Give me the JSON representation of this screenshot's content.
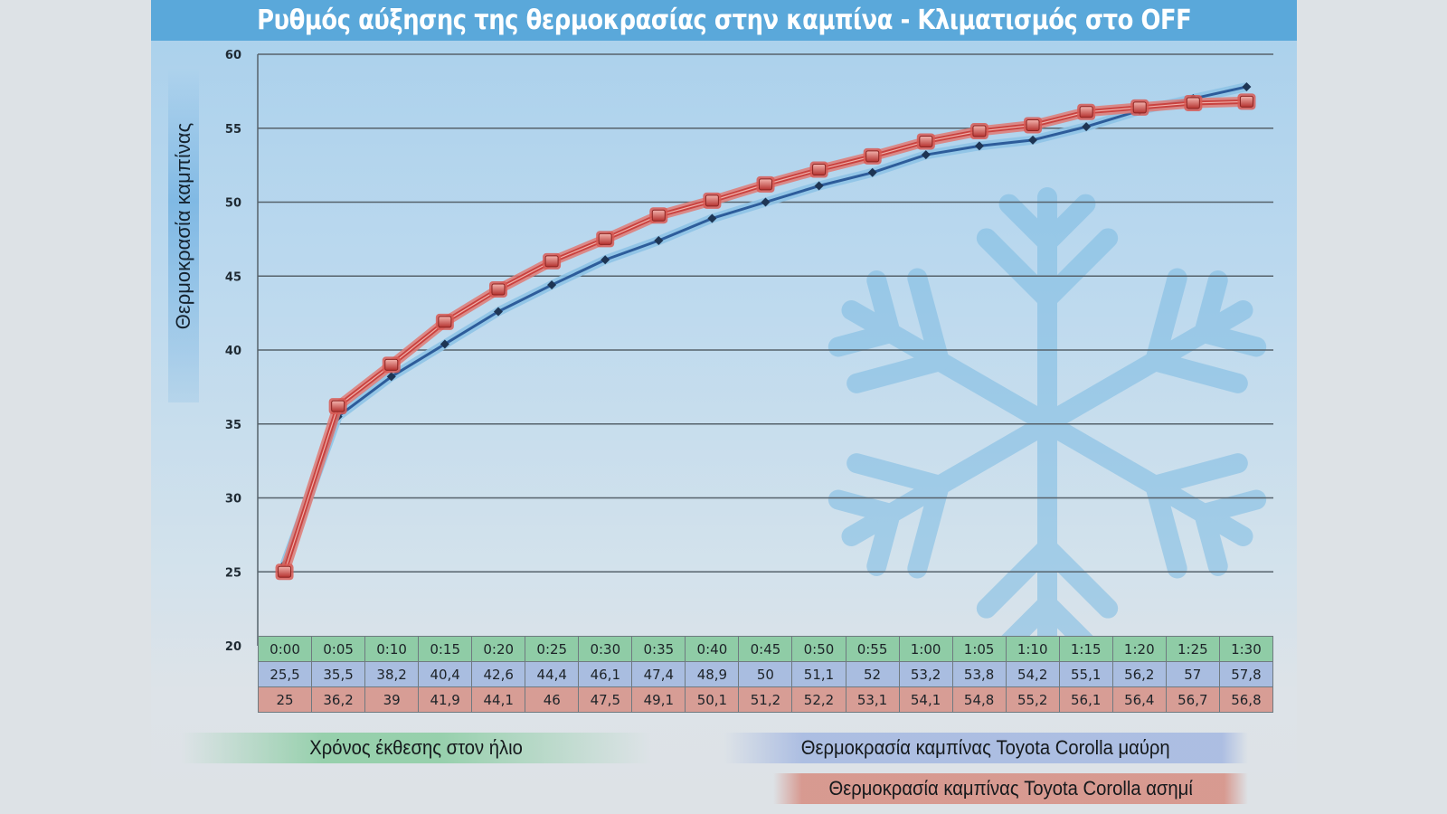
{
  "title": "Ρυθμός αύξησης της θερμοκρασίας στην καμπίνα - Κλιματισμός στο OFF",
  "y_axis_title": "Θερμοκρασία καμπίνας",
  "legend": {
    "time": "Χρόνος έκθεσης στον ήλιο",
    "black": "Θερμοκρασία καμπίνας Toyota Corolla μαύρη",
    "silver": "Θερμοκρασία καμπίνας Toyota Corolla ασημί"
  },
  "colors": {
    "title_bar": "#5aa8da",
    "black_series": "#2d5c9a",
    "black_series_glow": "#8ec3e6",
    "silver_series": "#c9423f",
    "silver_series_glow": "#e07a74",
    "time_row": "#8fcca6",
    "black_row": "#a9bde0",
    "silver_row": "#d79d95",
    "background": "#dde2e6"
  },
  "table": {
    "time": [
      "0:00",
      "0:05",
      "0:10",
      "0:15",
      "0:20",
      "0:25",
      "0:30",
      "0:35",
      "0:40",
      "0:45",
      "0:50",
      "0:55",
      "1:00",
      "1:05",
      "1:10",
      "1:15",
      "1:20",
      "1:25",
      "1:30"
    ],
    "black": [
      "25,5",
      "35,5",
      "38,2",
      "40,4",
      "42,6",
      "44,4",
      "46,1",
      "47,4",
      "48,9",
      "50",
      "51,1",
      "52",
      "53,2",
      "53,8",
      "54,2",
      "55,1",
      "56,2",
      "57",
      "57,8"
    ],
    "silver": [
      "25",
      "36,2",
      "39",
      "41,9",
      "44,1",
      "46",
      "47,5",
      "49,1",
      "50,1",
      "51,2",
      "52,2",
      "53,1",
      "54,1",
      "54,8",
      "55,2",
      "56,1",
      "56,4",
      "56,7",
      "56,8"
    ]
  },
  "chart_data": {
    "type": "line",
    "title": "Ρυθμός αύξησης της θερμοκρασίας στην καμπίνα - Κλιματισμός στο OFF",
    "xlabel": "Χρόνος έκθεσης στον ήλιο",
    "ylabel": "Θερμοκρασία καμπίνας",
    "ylim": [
      20,
      60
    ],
    "yticks": [
      20,
      25,
      30,
      35,
      40,
      45,
      50,
      55,
      60
    ],
    "grid": true,
    "legend_position": "bottom",
    "categories": [
      "0:00",
      "0:05",
      "0:10",
      "0:15",
      "0:20",
      "0:25",
      "0:30",
      "0:35",
      "0:40",
      "0:45",
      "0:50",
      "0:55",
      "1:00",
      "1:05",
      "1:10",
      "1:15",
      "1:20",
      "1:25",
      "1:30"
    ],
    "series": [
      {
        "name": "Θερμοκρασία καμπίνας Toyota Corolla μαύρη",
        "values": [
          25.5,
          35.5,
          38.2,
          40.4,
          42.6,
          44.4,
          46.1,
          47.4,
          48.9,
          50,
          51.1,
          52,
          53.2,
          53.8,
          54.2,
          55.1,
          56.2,
          57,
          57.8
        ]
      },
      {
        "name": "Θερμοκρασία καμπίνας Toyota Corolla ασημί",
        "values": [
          25,
          36.2,
          39,
          41.9,
          44.1,
          46,
          47.5,
          49.1,
          50.1,
          51.2,
          52.2,
          53.1,
          54.1,
          54.8,
          55.2,
          56.1,
          56.4,
          56.7,
          56.8
        ]
      }
    ]
  }
}
